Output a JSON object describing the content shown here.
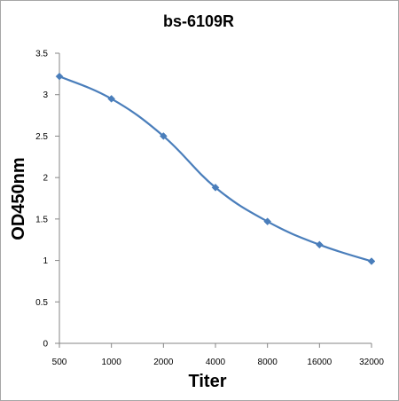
{
  "chart_data": {
    "type": "line",
    "title": "bs-6109R",
    "xlabel": "Titer",
    "ylabel": "OD450nm",
    "categories": [
      "500",
      "1000",
      "2000",
      "4000",
      "8000",
      "16000",
      "32000"
    ],
    "series": [
      {
        "values": [
          3.22,
          2.95,
          2.5,
          1.88,
          1.47,
          1.19,
          0.99
        ],
        "color": "#4a7ebb",
        "marker": "diamond",
        "smooth": true
      }
    ],
    "ylim": [
      0,
      3.5
    ],
    "yticks": [
      "0",
      "0.5",
      "1",
      "1.5",
      "2",
      "2.5",
      "3",
      "3.5"
    ],
    "grid": false,
    "legend": "none"
  }
}
